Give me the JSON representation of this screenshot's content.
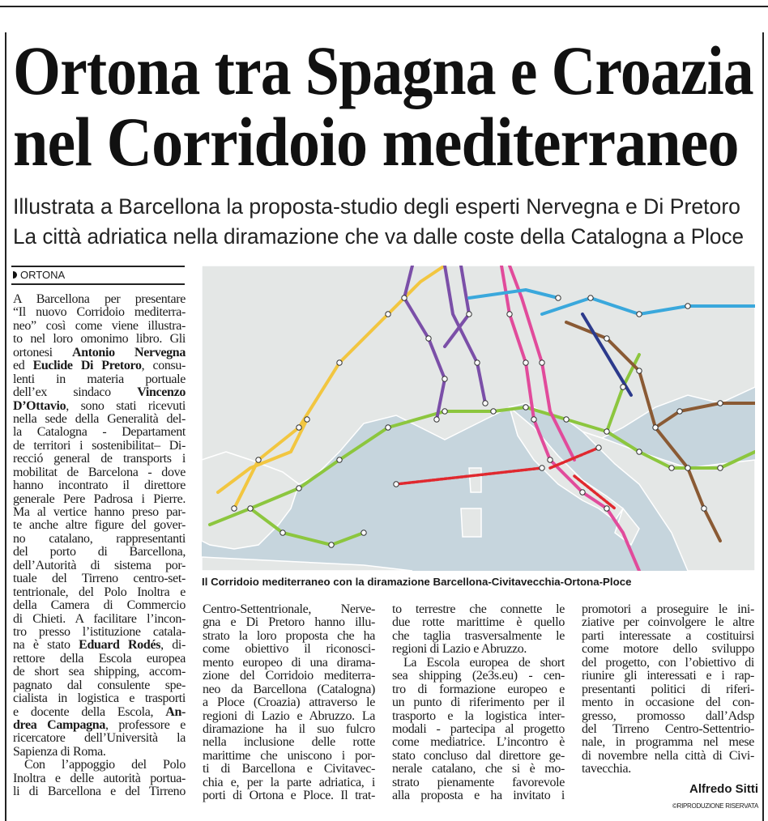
{
  "headline": [
    "Ortona tra Spagna e Croazia",
    "nel Corridoio mediterraneo"
  ],
  "subheadline": [
    "Illustrata a Barcellona la proposta-studio degli esperti Nervegna e Di Pretoro",
    "La città adriatica nella diramazione che va dalle coste della Catalogna a Ploce"
  ],
  "section": "ORTONA",
  "map": {
    "caption": "Il Corridoio mediterraneo con la diramazione Barcellona-Civitavecchia-Ortona-Ploce",
    "colors": {
      "sea": "#c6d5dd",
      "land": "#e4e7e6",
      "yellow": "#f2c640",
      "green": "#8cc63e",
      "purple": "#7b4fa8",
      "pink": "#e14b9b",
      "blue": "#3aa8dc",
      "brown": "#8a5a34",
      "red": "#e0282e",
      "navy": "#2c3a8c"
    }
  },
  "columns": [
    [
      [
        "A Barcellona per presentare"
      ],
      [
        "“Il nuovo Corridoio mediterra-"
      ],
      [
        "neo” così come viene illustra-"
      ],
      [
        "to nel loro omonimo libro. Gli"
      ],
      [
        "ortonesi ",
        {
          "b": "Antonio Nervegna"
        }
      ],
      [
        "ed ",
        {
          "b": "Euclide Di Pretoro"
        },
        ", consu-"
      ],
      [
        "lenti in materia portuale"
      ],
      [
        "dell’ex sindaco ",
        {
          "b": "Vincenzo"
        }
      ],
      [
        {
          "b": "D’Ottavio"
        },
        ", sono stati ricevuti"
      ],
      [
        "nella sede della Generalità del-"
      ],
      [
        "la Catalogna - Departament"
      ],
      [
        "de territori i sostenibilitat– Di-"
      ],
      [
        "recció general de transports i"
      ],
      [
        "mobilitat de Barcelona - dove"
      ],
      [
        "hanno incontrato il direttore"
      ],
      [
        "generale Pere Padrosa i Pierre."
      ],
      [
        "Ma al vertice hanno preso par-"
      ],
      [
        "te anche altre figure del gover-"
      ],
      [
        "no catalano, rappresentanti"
      ],
      [
        "del porto di Barcellona,"
      ],
      [
        "dell’Autorità di sistema por-"
      ],
      [
        "tuale del Tirreno centro-set-"
      ],
      [
        "tentrionale, del Polo Inoltra e"
      ],
      [
        "della Camera di Commercio"
      ],
      [
        "di Chieti. A facilitare l’incon-"
      ],
      [
        "tro presso l’istituzione catala-"
      ],
      [
        "na è stato ",
        {
          "b": "Eduard Rodés"
        },
        ", di-"
      ],
      [
        "rettore della Escola europea"
      ],
      [
        "de short sea shipping, accom-"
      ],
      [
        "pagnato dal consulente spe-"
      ],
      [
        "cialista in logistica e trasporti"
      ],
      [
        "e docente della Escola, ",
        {
          "b": "An-"
        }
      ],
      [
        {
          "b": "drea Campagna"
        },
        ", professore e"
      ],
      [
        "ricercatore dell’Università la"
      ],
      [
        "Sapienza di Roma.",
        {
          "last": true
        }
      ],
      [
        {
          "indent": true
        },
        "Con l’appoggio del Polo"
      ],
      [
        "Inoltra e delle autorità portua-"
      ],
      [
        "li di Barcellona e del Tirreno"
      ]
    ],
    [
      [
        "Centro-Settentrionale, Nerve-"
      ],
      [
        "gna e Di Pretoro hanno illu-"
      ],
      [
        "strato la loro proposta che ha"
      ],
      [
        "come obiettivo il riconosci-"
      ],
      [
        "mento europeo di una dirama-"
      ],
      [
        "zione del Corridoio mediterra-"
      ],
      [
        "neo da Barcellona (Catalogna)"
      ],
      [
        "a Ploce (Croazia) attraverso le"
      ],
      [
        "regioni di Lazio e Abruzzo. La"
      ],
      [
        "diramazione ha il suo fulcro"
      ],
      [
        "nella inclusione delle rotte"
      ],
      [
        "marittime che uniscono i por-"
      ],
      [
        "ti di Barcellona e Civitavec-"
      ],
      [
        "chia e, per la parte adriatica, i"
      ],
      [
        "porti di Ortona e Ploce. Il trat-"
      ]
    ],
    [
      [
        "to terrestre che connette le"
      ],
      [
        "due rotte marittime è quello"
      ],
      [
        "che taglia trasversalmente le"
      ],
      [
        "regioni di Lazio e Abruzzo.",
        {
          "last": true
        }
      ],
      [
        {
          "indent": true
        },
        "La Escola europea de short"
      ],
      [
        "sea shipping (2e3s.eu) - cen-"
      ],
      [
        "tro di formazione europeo e"
      ],
      [
        "un punto di riferimento per il"
      ],
      [
        "trasporto e la logistica inter-"
      ],
      [
        "modali - partecipa al progetto"
      ],
      [
        "come mediatrice. L’incontro è"
      ],
      [
        "stato concluso dal direttore ge-"
      ],
      [
        "nerale catalano, che si è mo-"
      ],
      [
        "strato pienamente favorevole"
      ],
      [
        "alla proposta e ha invitato i"
      ]
    ],
    [
      [
        "promotori a proseguire le ini-"
      ],
      [
        "ziative per coinvolgere le altre"
      ],
      [
        "parti interessate a costituirsi"
      ],
      [
        "come motore dello sviluppo"
      ],
      [
        "del progetto, con l’obiettivo di"
      ],
      [
        "riunire gli interessati e i rap-"
      ],
      [
        "presentanti politici di riferi-"
      ],
      [
        "mento in occasione del con-"
      ],
      [
        "gresso, promosso dall’Adsp"
      ],
      [
        "del Tirreno Centro-Settentrio-"
      ],
      [
        "nale, in programma nel mese"
      ],
      [
        "di novembre nella città di Civi-"
      ],
      [
        "tavecchia.",
        {
          "last": true
        }
      ]
    ]
  ],
  "author": "Alfredo Sitti",
  "rights": "©RIPRODUZIONE RISERVATA"
}
